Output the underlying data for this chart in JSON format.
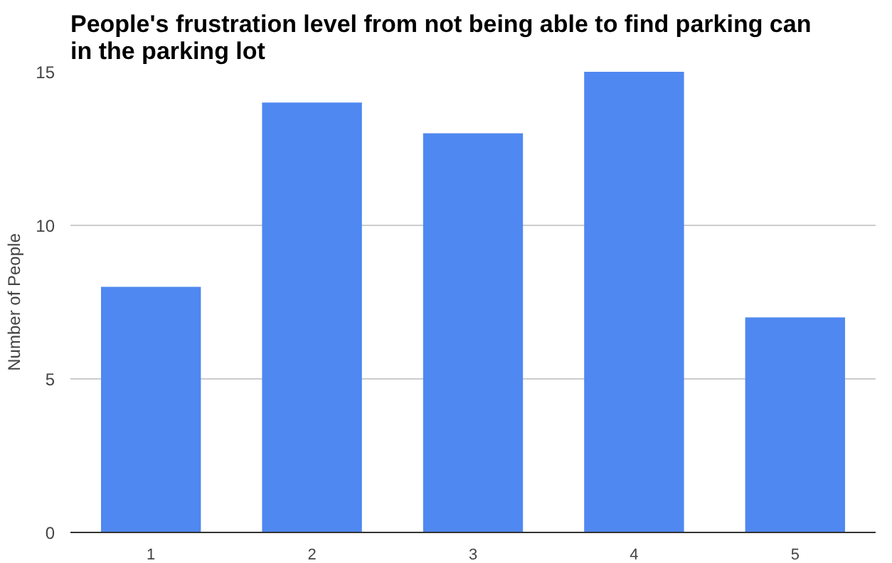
{
  "chart_data": {
    "type": "bar",
    "title": "People's frustration level from not being able to find parking can in the parking lot",
    "ylabel": "Number of People",
    "categories": [
      "1",
      "2",
      "3",
      "4",
      "5"
    ],
    "values": [
      8,
      14,
      13,
      15,
      7
    ],
    "color": "#4f88f0",
    "ylim": [
      0,
      15
    ],
    "yticks": [
      0,
      5,
      10,
      15
    ],
    "grid": "y"
  }
}
